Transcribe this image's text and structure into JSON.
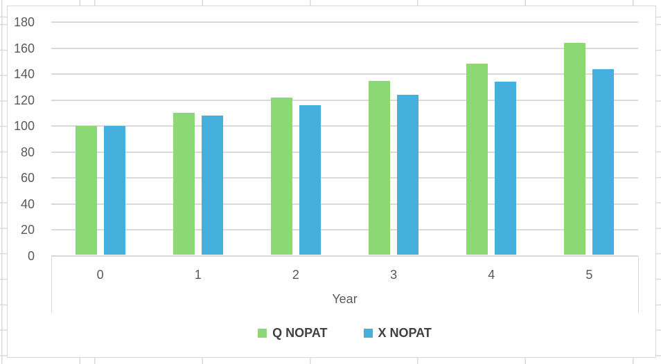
{
  "chart_data": {
    "type": "bar",
    "categories": [
      "0",
      "1",
      "2",
      "3",
      "4",
      "5"
    ],
    "series": [
      {
        "name": "Q NOPAT",
        "color": "#8BD874",
        "values": [
          100,
          110,
          122,
          135,
          148,
          164
        ]
      },
      {
        "name": "X NOPAT",
        "color": "#45B0DE",
        "values": [
          100,
          108,
          116,
          124,
          134,
          144
        ]
      }
    ],
    "title": "",
    "xlabel": "Year",
    "ylabel": "",
    "ylim": [
      0,
      180
    ],
    "ytick_step": 20,
    "yticks": [
      0,
      20,
      40,
      60,
      80,
      100,
      120,
      140,
      160,
      180
    ],
    "grid": "horizontal",
    "legend_position": "bottom"
  },
  "colors": {
    "gridline": "#D9D9D9",
    "chart_border": "#D9D9D9",
    "sheet_grid": "#DADADA",
    "axis_text": "#595959",
    "legend_text": "#404040"
  }
}
